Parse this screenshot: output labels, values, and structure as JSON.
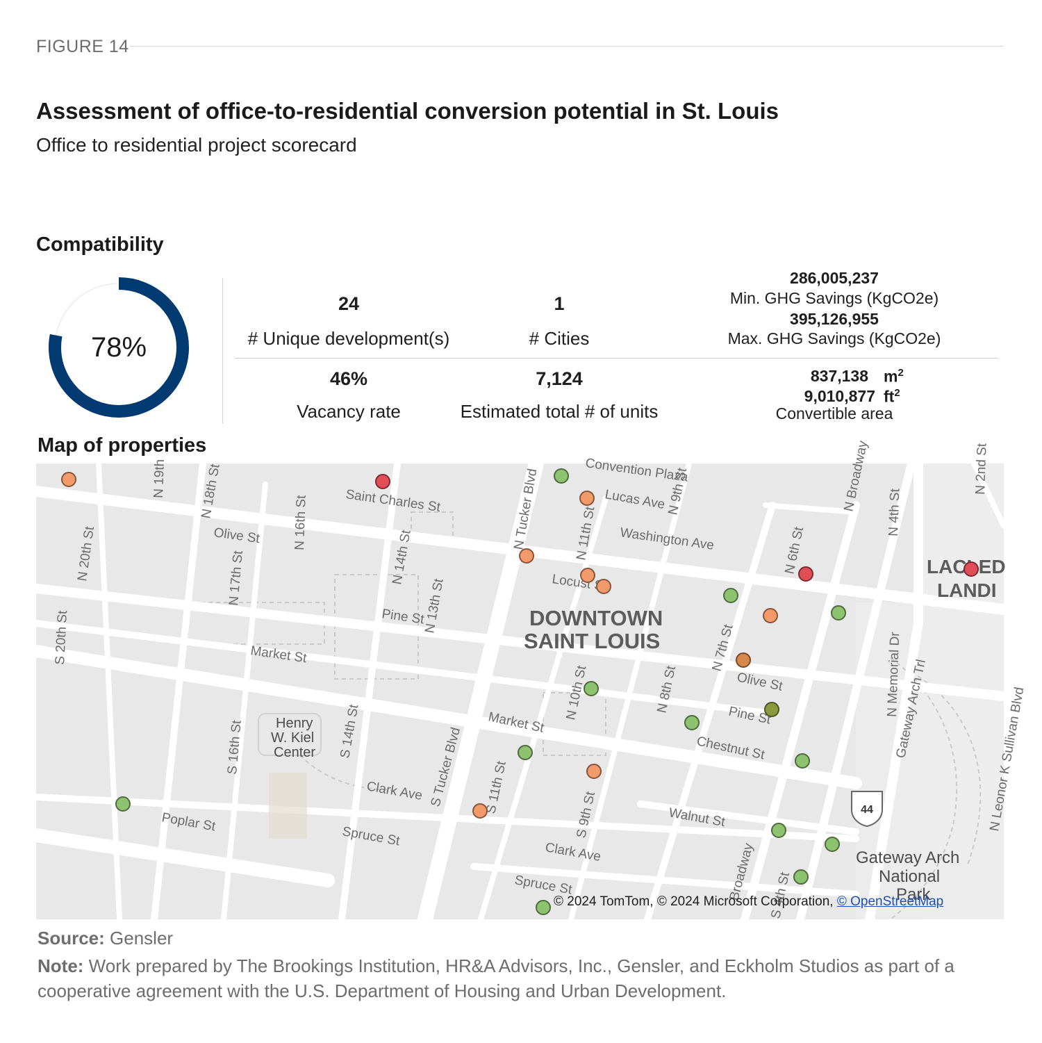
{
  "figure_label": "FIGURE 14",
  "title": "Assessment of office-to-residential conversion potential in St. Louis",
  "subtitle": "Office to residential project scorecard",
  "compatibility": {
    "heading": "Compatibility",
    "percent": 0.78,
    "percent_label": "78%",
    "ring_color": "#003a70"
  },
  "kpis": {
    "unique_dev_value": "24",
    "unique_dev_label": "# Unique development(s)",
    "cities_value": "1",
    "cities_label": "# Cities",
    "min_ghg_value": "286,005,237",
    "min_ghg_label": "Min. GHG Savings (KgCO2e)",
    "max_ghg_value": "395,126,955",
    "max_ghg_label": "Max. GHG Savings (KgCO2e)",
    "vacancy_value": "46%",
    "vacancy_label": "Vacancy rate",
    "units_value": "7,124",
    "units_label": "Estimated total # of units",
    "area_m2_value": "837,138",
    "area_m2_unit": "m",
    "area_ft2_value": "9,010,877",
    "area_ft2_unit": "ft",
    "area_sup": "2",
    "area_label": "Convertible area"
  },
  "map": {
    "heading": "Map of properties",
    "district_line1": "DOWNTOWN",
    "district_line2": "SAINT LOUIS",
    "poi_kiel_1": "Henry",
    "poi_kiel_2": "W. Kiel",
    "poi_kiel_3": "Center",
    "poi_arch_1": "Gateway Arch",
    "poi_arch_2": "National",
    "poi_arch_3": "Park",
    "poi_laclede_1": "LACLED",
    "poi_laclede_2": "LANDI",
    "highway_shield": "44",
    "attribution": "© 2024 TomTom, © 2024 Microsoft Corporation,",
    "attribution_link": "© OpenStreetMap",
    "marker_colors": {
      "green": "#8dc26f",
      "orange": "#f39a6a",
      "red": "#e14e57",
      "dark_orange": "#d8874a",
      "olive": "#8c9a3e"
    },
    "street_labels": [
      "N 20th St",
      "N 19th",
      "N 18th St",
      "N 16th St",
      "N 17th St",
      "Olive St",
      "Saint Charles St",
      "N 14th St",
      "N 13th St",
      "Pine St",
      "Market St",
      "S 20th St",
      "N Tucker Blvd",
      "N 11th St",
      "Lucas Ave",
      "N 9th St",
      "Washington Ave",
      "Locust St",
      "Convention Plaza",
      "N 6th St",
      "N Broadway",
      "N 4th St",
      "N 7th St",
      "N 8th St",
      "N 10th St",
      "Olive St",
      "Pine St",
      "Chestnut St",
      "Market St",
      "S 16th St",
      "S 14th St",
      "S Tucker Blvd",
      "S 11th St",
      "Clark Ave",
      "Spruce St",
      "Poplar St",
      "S 9th St",
      "Walnut St",
      "Clark Ave",
      "Spruce St",
      "Broadway",
      "S 4th St",
      "N Memorial Dr",
      "Gateway Arch Trl",
      "N Leonor K Sullivan Blvd",
      "N 2nd St"
    ]
  },
  "source_label": "Source:",
  "source_text": " Gensler",
  "note_label": "Note:",
  "note_text": " Work prepared by The Brookings Institution, HR&A Advisors, Inc., Gensler, and Eckholm Studios as part of a cooperative agreement with the U.S. Department of Housing and Urban Development."
}
